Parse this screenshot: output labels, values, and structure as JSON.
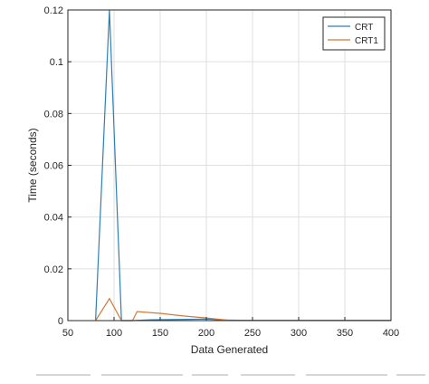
{
  "chart_data": {
    "type": "line",
    "xlabel": "Data Generated",
    "ylabel": "Time (seconds)",
    "xlim": [
      50,
      400
    ],
    "ylim": [
      0,
      0.12
    ],
    "xticks": [
      50,
      100,
      150,
      200,
      250,
      300,
      350,
      400
    ],
    "xtick_labels": [
      "50",
      "100",
      "150",
      "200",
      "250",
      "300",
      "350",
      "400"
    ],
    "yticks": [
      0,
      0.02,
      0.04,
      0.06,
      0.08,
      0.1,
      0.12
    ],
    "ytick_labels": [
      "0",
      "0.02",
      "0.04",
      "0.06",
      "0.08",
      "0.1",
      "0.12"
    ],
    "grid": true,
    "legend_position": "top-right",
    "series": [
      {
        "name": "CRT",
        "color": "#2f7fb5",
        "x": [
          80,
          95,
          108,
          120,
          140,
          160,
          180,
          200,
          220,
          250,
          300,
          350,
          400
        ],
        "y": [
          0,
          0.12,
          0,
          0,
          0.0003,
          0.0004,
          0.0005,
          0.0006,
          0.0002,
          0.0001,
          0.0001,
          0.0001,
          0.0001
        ]
      },
      {
        "name": "CRT1",
        "color": "#d0793a",
        "x": [
          80,
          95,
          108,
          120,
          125,
          150,
          175,
          200,
          225,
          250,
          300,
          350,
          400
        ],
        "y": [
          0,
          0.0085,
          0,
          0,
          0.0035,
          0.0028,
          0.0018,
          0.001,
          0.0001,
          0.0001,
          0.0001,
          0.0001,
          0.0001
        ]
      }
    ]
  }
}
